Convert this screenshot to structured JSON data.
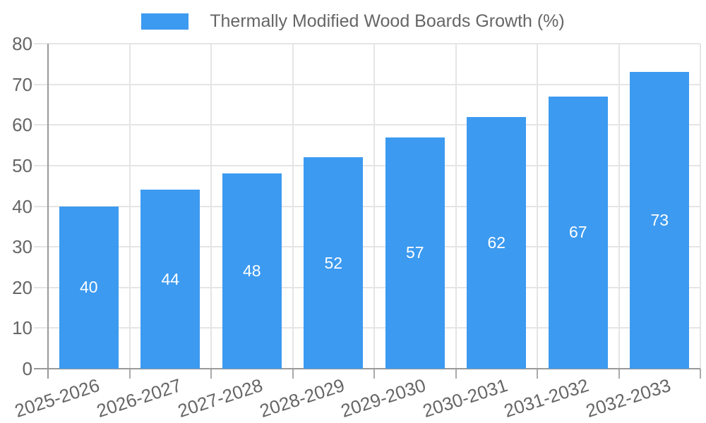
{
  "chart_data": {
    "type": "bar",
    "title": "",
    "legend_label": "Thermally Modified Wood Boards Growth (%)",
    "legend_position": "top",
    "categories": [
      "2025-2026",
      "2026-2027",
      "2027-2028",
      "2028-2029",
      "2029-2030",
      "2030-2031",
      "2031-2032",
      "2032-2033"
    ],
    "values": [
      40,
      44,
      48,
      52,
      57,
      62,
      67,
      73
    ],
    "xlabel": "",
    "ylabel": "",
    "ylim": [
      0,
      80
    ],
    "ytick_step": 10,
    "yticks": [
      0,
      10,
      20,
      30,
      40,
      50,
      60,
      70,
      80
    ],
    "grid": true,
    "value_labels_inside_bars": true,
    "x_label_rotation_deg": -18,
    "colors": {
      "bar": "#3C9AF0",
      "axis": "#999999",
      "tick": "#AAAAAA",
      "grid": "#E5E5E5",
      "label": "#666666",
      "value_label": "#FFFFFF",
      "background": "#FFFFFF"
    }
  }
}
